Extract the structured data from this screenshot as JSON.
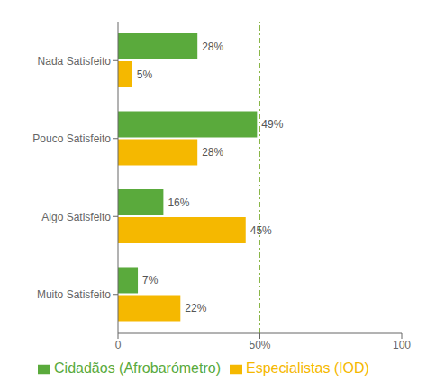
{
  "chart_data": {
    "type": "bar",
    "orientation": "horizontal",
    "categories": [
      "Nada Satisfeito",
      "Pouco Satisfeito",
      "Algo Satisfeito",
      "Muito Satisfeito"
    ],
    "series": [
      {
        "name": "Cidadãos (Afrobarómetro)",
        "color": "#5aaa3c",
        "values": [
          28,
          49,
          16,
          7
        ],
        "value_labels": [
          "28%",
          "49%",
          "16%",
          "7%"
        ]
      },
      {
        "name": "Especialistas (IOD)",
        "color": "#f5b800",
        "values": [
          5,
          28,
          45,
          22
        ],
        "value_labels": [
          "5%",
          "28%",
          "45%",
          "22%"
        ]
      }
    ],
    "xlim": [
      0,
      100
    ],
    "xticks": [
      0,
      {
        "value": 50,
        "label": "50%"
      },
      100
    ],
    "vline": {
      "value": 50,
      "color": "#8ab648",
      "line_style": "dashdot"
    },
    "data_labels": true,
    "legend": "bottom",
    "grid": false
  }
}
